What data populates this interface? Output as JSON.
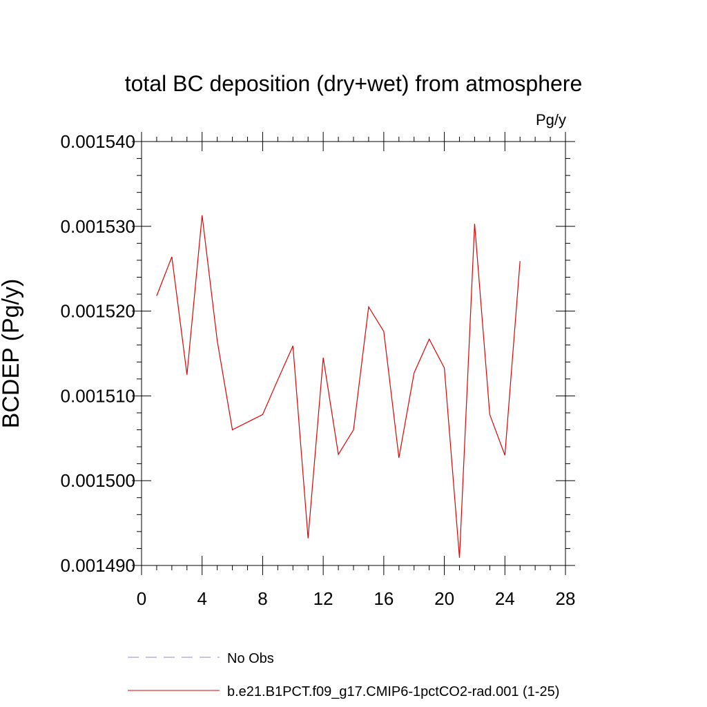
{
  "chart_data": {
    "type": "line",
    "title": "total BC deposition (dry+wet) from atmosphere",
    "units_label": "Pg/y",
    "ylabel": "BCDEP  (Pg/y)",
    "xlabel": "",
    "xlim": [
      0,
      28
    ],
    "ylim": [
      0.00149,
      0.00154
    ],
    "x_ticks": [
      0,
      4,
      8,
      12,
      16,
      20,
      24,
      28
    ],
    "x_tick_labels": [
      "0",
      "4",
      "8",
      "12",
      "16",
      "20",
      "24",
      "28"
    ],
    "y_ticks": [
      0.00149,
      0.0015,
      0.00151,
      0.00152,
      0.00153,
      0.00154
    ],
    "y_tick_labels": [
      "0.001490",
      "0.001500",
      "0.001510",
      "0.001520",
      "0.001530",
      "0.001540"
    ],
    "grid": false,
    "legend_position": "bottom-left",
    "legend": [
      {
        "label": "No Obs",
        "color": "#8888cc",
        "style": "dashed"
      },
      {
        "label": "b.e21.B1PCT.f09_g17.CMIP6-1pctCO2-rad.001 (1-25)",
        "color": "#e00000",
        "style": "solid"
      }
    ],
    "series": [
      {
        "name": "b.e21.B1PCT.f09_g17.CMIP6-1pctCO2-rad.001 (1-25)",
        "color": "#e00000",
        "x": [
          1,
          2,
          3,
          4,
          5,
          6,
          7,
          8,
          9,
          10,
          11,
          12,
          13,
          14,
          15,
          16,
          17,
          18,
          19,
          20,
          21,
          22,
          23,
          24,
          25
        ],
        "y": [
          0.0015218,
          0.0015264,
          0.0015125,
          0.0015313,
          0.0015165,
          0.001506,
          0.0015069,
          0.0015078,
          0.0015119,
          0.0015159,
          0.0014932,
          0.0015145,
          0.0015031,
          0.001506,
          0.0015205,
          0.0015176,
          0.0015027,
          0.0015127,
          0.0015167,
          0.0015133,
          0.0014909,
          0.0015303,
          0.0015078,
          0.001503,
          0.0015259
        ]
      }
    ]
  }
}
